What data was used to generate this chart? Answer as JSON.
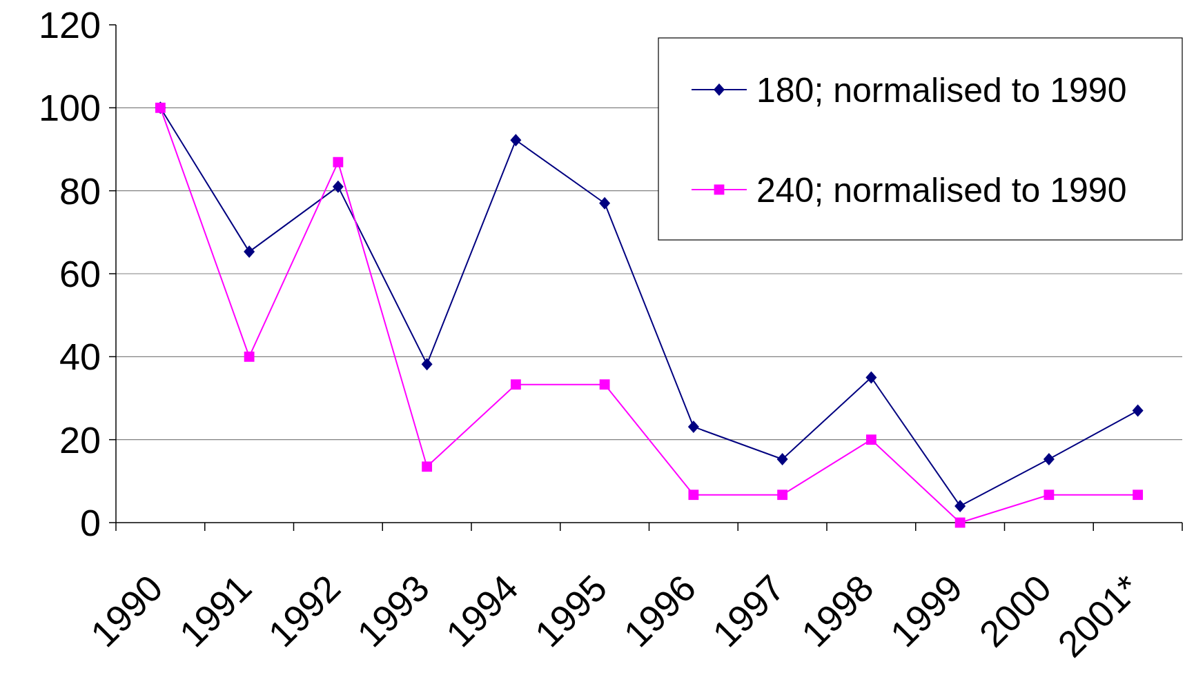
{
  "chart_data": {
    "type": "line",
    "categories": [
      "1990",
      "1991",
      "1992",
      "1993",
      "1994",
      "1995",
      "1996",
      "1997",
      "1998",
      "1999",
      "2000",
      "2001*"
    ],
    "series": [
      {
        "name": "180; normalised to 1990",
        "color": "#000080",
        "marker": "diamond",
        "values": [
          100,
          65.3,
          81,
          38.2,
          92.2,
          77,
          23.1,
          15.3,
          35,
          4,
          15.3,
          27
        ]
      },
      {
        "name": "240; normalised to 1990",
        "color": "#ff00ff",
        "marker": "square",
        "values": [
          100,
          40,
          86.9,
          13.5,
          33.3,
          33.3,
          6.7,
          6.7,
          20,
          0,
          6.7,
          6.7
        ]
      }
    ],
    "ylim": [
      0,
      120
    ],
    "yticks": [
      0,
      20,
      40,
      60,
      80,
      100,
      120
    ],
    "grid": "y",
    "legend": "top right"
  }
}
